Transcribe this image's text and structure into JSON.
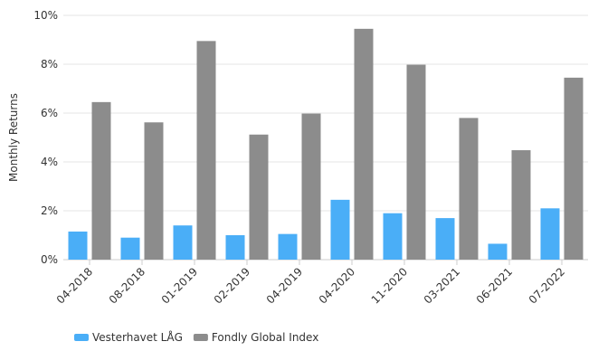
{
  "chart_data": {
    "type": "bar",
    "title": "",
    "xlabel": "",
    "ylabel": "Monthly Returns",
    "categories": [
      "04-2018",
      "08-2018",
      "01-2019",
      "02-2019",
      "04-2019",
      "04-2020",
      "11-2020",
      "03-2021",
      "06-2021",
      "07-2022"
    ],
    "series": [
      {
        "name": "Vesterhavet LÅG",
        "color": "#4aaef7",
        "values": [
          1.15,
          0.9,
          1.4,
          1.0,
          1.05,
          2.45,
          1.9,
          1.7,
          0.65,
          2.1
        ]
      },
      {
        "name": "Fondly Global Index",
        "color": "#8c8c8c",
        "values": [
          6.45,
          5.62,
          8.95,
          5.12,
          5.98,
          9.45,
          7.98,
          5.8,
          4.48,
          7.45
        ]
      }
    ],
    "ylim": [
      0,
      10
    ],
    "yticks": [
      0,
      2,
      4,
      6,
      8,
      10
    ],
    "ytick_format": "%",
    "grid": true,
    "legend_position": "bottom-left"
  }
}
